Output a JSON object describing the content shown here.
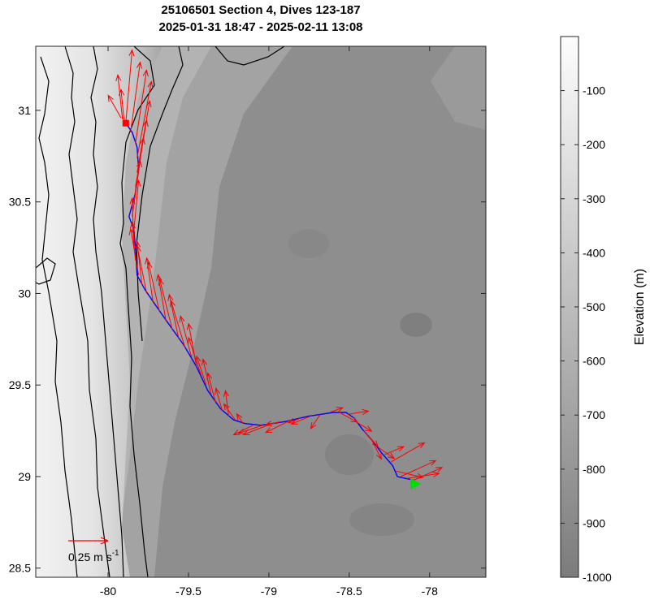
{
  "chart_data": {
    "type": "map",
    "title_line1": "25106501 Section 4, Dives 123-187",
    "title_line2": "2025-01-31 18:47 - 2025-02-11 13:08",
    "xlim": [
      -80.45,
      -77.65
    ],
    "ylim": [
      28.45,
      31.35
    ],
    "x_ticks": [
      -80,
      -79.5,
      -79,
      -78.5,
      -78
    ],
    "x_tick_labels": [
      "-80",
      "-79.5",
      "-79",
      "-78.5",
      "-78"
    ],
    "y_ticks": [
      28.5,
      29,
      29.5,
      30,
      30.5,
      31
    ],
    "y_tick_labels": [
      "28.5",
      "29",
      "29.5",
      "30",
      "30.5",
      "31"
    ],
    "colorbar": {
      "label": "Elevation (m)",
      "range": [
        -1000,
        0
      ],
      "ticks": [
        -100,
        -200,
        -300,
        -400,
        -500,
        -600,
        -700,
        -800,
        -900,
        -1000
      ],
      "tick_labels": [
        "-100",
        "-200",
        "-300",
        "-400",
        "-500",
        "-600",
        "-700",
        "-800",
        "-900",
        "-1000"
      ]
    },
    "scale_arrow": {
      "label": "0.25 m s",
      "superscript": "-1",
      "speed": 0.25,
      "color": "#ff0000"
    },
    "colors": {
      "track": "#0000ff",
      "current_arrows": "#ff0000",
      "start_marker": "#00dd00",
      "end_marker": "#ff0000",
      "contours": "#000000"
    },
    "track": [
      [
        -78.1,
        28.98
      ],
      [
        -78.2,
        29.0
      ],
      [
        -78.23,
        29.06
      ],
      [
        -78.3,
        29.13
      ],
      [
        -78.35,
        29.19
      ],
      [
        -78.42,
        29.26
      ],
      [
        -78.47,
        29.32
      ],
      [
        -78.52,
        29.35
      ],
      [
        -78.6,
        29.35
      ],
      [
        -78.75,
        29.33
      ],
      [
        -78.9,
        29.3
      ],
      [
        -79.05,
        29.28
      ],
      [
        -79.15,
        29.29
      ],
      [
        -79.22,
        29.31
      ],
      [
        -79.3,
        29.37
      ],
      [
        -79.38,
        29.47
      ],
      [
        -79.45,
        29.6
      ],
      [
        -79.53,
        29.72
      ],
      [
        -79.62,
        29.83
      ],
      [
        -79.7,
        29.93
      ],
      [
        -79.77,
        30.02
      ],
      [
        -79.82,
        30.1
      ],
      [
        -79.83,
        30.25
      ],
      [
        -79.84,
        30.35
      ],
      [
        -79.87,
        30.42
      ],
      [
        -79.83,
        30.55
      ],
      [
        -79.81,
        30.68
      ],
      [
        -79.82,
        30.8
      ],
      [
        -79.85,
        30.88
      ],
      [
        -79.89,
        30.93
      ]
    ],
    "start_point": {
      "lon": -78.1,
      "lat": 28.96
    },
    "end_point": {
      "lon": -79.89,
      "lat": 30.93
    },
    "current_vectors": [
      {
        "lon": -78.1,
        "lat": 28.98,
        "u": 0.18,
        "v": 0.08
      },
      {
        "lon": -78.14,
        "lat": 28.99,
        "u": 0.2,
        "v": 0.03
      },
      {
        "lon": -78.18,
        "lat": 29.0,
        "u": 0.22,
        "v": 0.1
      },
      {
        "lon": -78.21,
        "lat": 29.03,
        "u": 0.17,
        "v": -0.04
      },
      {
        "lon": -78.24,
        "lat": 29.08,
        "u": 0.21,
        "v": 0.12
      },
      {
        "lon": -78.28,
        "lat": 29.12,
        "u": 0.12,
        "v": 0.05
      },
      {
        "lon": -78.32,
        "lat": 29.16,
        "u": 0.1,
        "v": -0.07
      },
      {
        "lon": -78.36,
        "lat": 29.2,
        "u": 0.06,
        "v": -0.12
      },
      {
        "lon": -78.41,
        "lat": 29.25,
        "u": 0.09,
        "v": -0.1
      },
      {
        "lon": -78.46,
        "lat": 29.3,
        "u": 0.1,
        "v": -0.06
      },
      {
        "lon": -78.51,
        "lat": 29.34,
        "u": 0.13,
        "v": 0.02
      },
      {
        "lon": -78.56,
        "lat": 29.35,
        "u": 0.11,
        "v": -0.06
      },
      {
        "lon": -78.62,
        "lat": 29.35,
        "u": 0.08,
        "v": 0.03
      },
      {
        "lon": -78.68,
        "lat": 29.34,
        "u": -0.06,
        "v": -0.09
      },
      {
        "lon": -78.74,
        "lat": 29.33,
        "u": -0.12,
        "v": -0.05
      },
      {
        "lon": -78.8,
        "lat": 29.32,
        "u": -0.08,
        "v": -0.03
      },
      {
        "lon": -78.86,
        "lat": 29.31,
        "u": -0.16,
        "v": -0.08
      },
      {
        "lon": -78.92,
        "lat": 29.3,
        "u": -0.1,
        "v": -0.02
      },
      {
        "lon": -78.98,
        "lat": 29.29,
        "u": -0.18,
        "v": -0.07
      },
      {
        "lon": -79.04,
        "lat": 29.28,
        "u": -0.15,
        "v": -0.05
      },
      {
        "lon": -79.1,
        "lat": 29.28,
        "u": -0.12,
        "v": -0.06
      },
      {
        "lon": -79.16,
        "lat": 29.29,
        "u": -0.04,
        "v": 0.06
      },
      {
        "lon": -79.21,
        "lat": 29.31,
        "u": -0.07,
        "v": 0.1
      },
      {
        "lon": -79.25,
        "lat": 29.33,
        "u": -0.02,
        "v": 0.16
      },
      {
        "lon": -79.29,
        "lat": 29.36,
        "u": -0.04,
        "v": 0.14
      },
      {
        "lon": -79.33,
        "lat": 29.4,
        "u": -0.05,
        "v": 0.19
      },
      {
        "lon": -79.36,
        "lat": 29.45,
        "u": -0.05,
        "v": 0.22
      },
      {
        "lon": -79.39,
        "lat": 29.5,
        "u": -0.06,
        "v": 0.18
      },
      {
        "lon": -79.42,
        "lat": 29.55,
        "u": -0.08,
        "v": 0.24
      },
      {
        "lon": -79.45,
        "lat": 29.6,
        "u": -0.05,
        "v": 0.27
      },
      {
        "lon": -79.48,
        "lat": 29.65,
        "u": -0.07,
        "v": 0.26
      },
      {
        "lon": -79.52,
        "lat": 29.7,
        "u": -0.09,
        "v": 0.3
      },
      {
        "lon": -79.56,
        "lat": 29.75,
        "u": -0.06,
        "v": 0.28
      },
      {
        "lon": -79.6,
        "lat": 29.8,
        "u": -0.08,
        "v": 0.32
      },
      {
        "lon": -79.64,
        "lat": 29.85,
        "u": -0.05,
        "v": 0.29
      },
      {
        "lon": -79.68,
        "lat": 29.9,
        "u": -0.07,
        "v": 0.31
      },
      {
        "lon": -79.72,
        "lat": 29.95,
        "u": -0.04,
        "v": 0.28
      },
      {
        "lon": -79.76,
        "lat": 30.0,
        "u": -0.06,
        "v": 0.3
      },
      {
        "lon": -79.79,
        "lat": 30.05,
        "u": -0.03,
        "v": 0.27
      },
      {
        "lon": -79.81,
        "lat": 30.1,
        "u": -0.05,
        "v": 0.29
      },
      {
        "lon": -79.83,
        "lat": 30.18,
        "u": -0.02,
        "v": 0.24
      },
      {
        "lon": -79.84,
        "lat": 30.26,
        "u": -0.01,
        "v": 0.3
      },
      {
        "lon": -79.84,
        "lat": 30.34,
        "u": 0.03,
        "v": 0.32
      },
      {
        "lon": -79.85,
        "lat": 30.42,
        "u": 0.05,
        "v": 0.35
      },
      {
        "lon": -79.84,
        "lat": 30.5,
        "u": 0.06,
        "v": 0.4
      },
      {
        "lon": -79.83,
        "lat": 30.58,
        "u": 0.07,
        "v": 0.42
      },
      {
        "lon": -79.82,
        "lat": 30.66,
        "u": 0.08,
        "v": 0.45
      },
      {
        "lon": -79.82,
        "lat": 30.74,
        "u": 0.09,
        "v": 0.48
      },
      {
        "lon": -79.83,
        "lat": 30.82,
        "u": 0.07,
        "v": 0.46
      },
      {
        "lon": -79.86,
        "lat": 30.88,
        "u": 0.06,
        "v": 0.44
      },
      {
        "lon": -79.89,
        "lat": 30.93,
        "u": 0.04,
        "v": 0.46
      },
      {
        "lon": -79.91,
        "lat": 30.95,
        "u": -0.03,
        "v": 0.28
      },
      {
        "lon": -79.92,
        "lat": 30.96,
        "u": -0.08,
        "v": 0.14
      },
      {
        "lon": -79.9,
        "lat": 30.94,
        "u": -0.02,
        "v": 0.2
      }
    ]
  }
}
